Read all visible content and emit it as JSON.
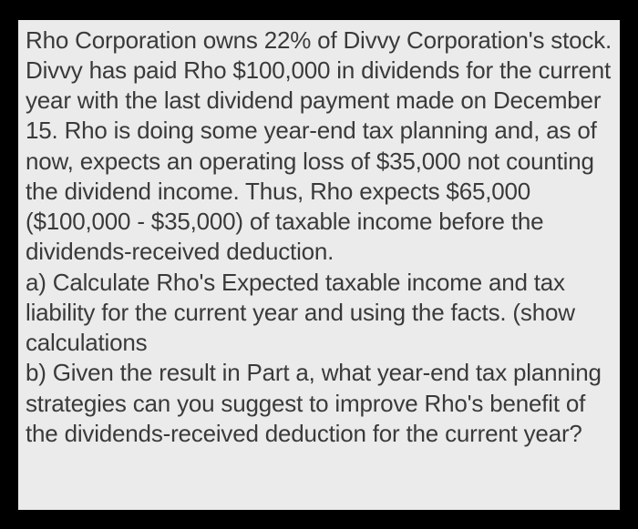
{
  "problem": {
    "background_color": "#000000",
    "panel_color": "#ebebeb",
    "text_color": "#3a3a3a",
    "font_size": 26,
    "text": "Rho Corporation owns 22% of Divvy Corporation's stock. Divvy has paid Rho $100,000 in dividends for the current year with the last dividend payment made on December 15. Rho is doing some year-end tax planning and, as of now, expects an operating loss of $35,000 not counting the dividend income. Thus, Rho expects $65,000 ($100,000 - $35,000) of taxable income before the dividends-received deduction.\na) Calculate Rho's Expected taxable income and tax liability for the current year and using the facts. (show calculations\nb) Given the result in Part a, what year-end tax planning strategies can you suggest to improve Rho's benefit of the dividends-received deduction for the current year?"
  }
}
